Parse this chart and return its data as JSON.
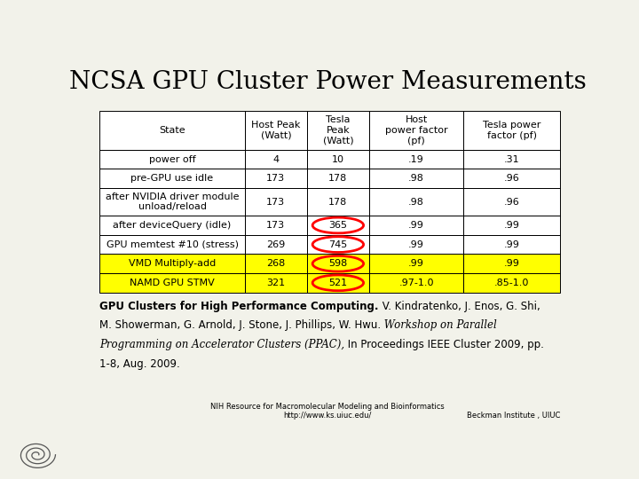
{
  "title": "NCSA GPU Cluster Power Measurements",
  "col_headers": [
    "State",
    "Host Peak\n(Watt)",
    "Tesla\nPeak\n(Watt)",
    "Host\npower factor\n(pf)",
    "Tesla power\nfactor (pf)"
  ],
  "rows": [
    [
      "power off",
      "4",
      "10",
      ".19",
      ".31"
    ],
    [
      "pre-GPU use idle",
      "173",
      "178",
      ".98",
      ".96"
    ],
    [
      "after NVIDIA driver module\nunload/reload",
      "173",
      "178",
      ".98",
      ".96"
    ],
    [
      "after deviceQuery (idle)",
      "173",
      "365",
      ".99",
      ".99"
    ],
    [
      "GPU memtest #10 (stress)",
      "269",
      "745",
      ".99",
      ".99"
    ],
    [
      "VMD Multiply-add",
      "268",
      "598",
      ".99",
      ".99"
    ],
    [
      "NAMD GPU STMV",
      "321",
      "521",
      ".97-1.0",
      ".85-1.0"
    ]
  ],
  "row_colors": [
    "white",
    "white",
    "white",
    "white",
    "white",
    "#ffff00",
    "#ffff00"
  ],
  "circled_cells": [
    [
      3,
      2
    ],
    [
      4,
      2
    ],
    [
      5,
      2
    ],
    [
      6,
      2
    ]
  ],
  "ref_line1_bold": "GPU Clusters for High Performance Computing.",
  "ref_line1_rest": " V. Kindratenko, J. Enos, G. Shi,",
  "ref_line2_normal": "M. Showerman, G. Arnold, J. Stone, J. Phillips, W. Hwu.",
  "ref_line2_italic": " Workshop on Parallel",
  "ref_line3_italic": "Programming on Accelerator Clusters (PPAC),",
  "ref_line3_rest": " In Proceedings IEEE Cluster 2009, pp.",
  "ref_line4": "1-8, Aug. 2009.",
  "footer_center": "NIH Resource for Macromolecular Modeling and Bioinformatics\nhttp://www.ks.uiuc.edu/",
  "footer_right": "Beckman Institute , UIUC",
  "bg_color": "#f2f2ea",
  "circle_color": "red",
  "title_fontsize": 20,
  "table_fontsize": 8,
  "ref_fontsize": 8.5,
  "footer_fontsize": 6
}
